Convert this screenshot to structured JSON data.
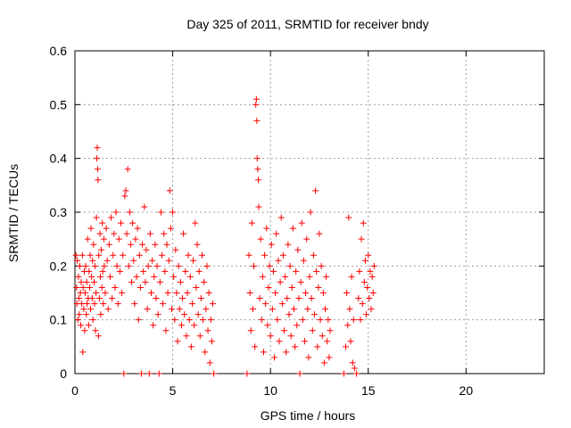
{
  "chart_data": {
    "type": "scatter",
    "title": "Day 325 of 2011, SRMTID for receiver bndy",
    "xlabel": "GPS time / hours",
    "ylabel": "SRMTID / TECUs",
    "xlim": [
      0,
      24
    ],
    "ylim": [
      0,
      0.6
    ],
    "x_ticks": [
      0,
      5,
      10,
      15,
      20
    ],
    "y_ticks": [
      0,
      0.1,
      0.2,
      0.3,
      0.4,
      0.5,
      0.6
    ],
    "grid": true,
    "legend": "none",
    "marker": "plus",
    "color": "#ff0000",
    "series": [
      {
        "values": [
          [
            0.05,
            0.22
          ],
          [
            0.08,
            0.16
          ],
          [
            0.1,
            0.13
          ],
          [
            0.12,
            0.21
          ],
          [
            0.15,
            0.1
          ],
          [
            0.18,
            0.18
          ],
          [
            0.2,
            0.14
          ],
          [
            0.22,
            0.11
          ],
          [
            0.25,
            0.2
          ],
          [
            0.28,
            0.15
          ],
          [
            0.3,
            0.09
          ],
          [
            0.32,
            0.17
          ],
          [
            0.35,
            0.13
          ],
          [
            0.38,
            0.22
          ],
          [
            0.4,
            0.04
          ],
          [
            0.42,
            0.16
          ],
          [
            0.45,
            0.12
          ],
          [
            0.48,
            0.19
          ],
          [
            0.5,
            0.08
          ],
          [
            0.52,
            0.15
          ],
          [
            0.55,
            0.2
          ],
          [
            0.58,
            0.11
          ],
          [
            0.6,
            0.17
          ],
          [
            0.62,
            0.13
          ],
          [
            0.65,
            0.25
          ],
          [
            0.68,
            0.14
          ],
          [
            0.7,
            0.09
          ],
          [
            0.72,
            0.19
          ],
          [
            0.75,
            0.16
          ],
          [
            0.78,
            0.22
          ],
          [
            0.8,
            0.12
          ],
          [
            0.82,
            0.27
          ],
          [
            0.85,
            0.18
          ],
          [
            0.88,
            0.14
          ],
          [
            0.9,
            0.21
          ],
          [
            0.92,
            0.1
          ],
          [
            0.95,
            0.24
          ],
          [
            0.98,
            0.17
          ],
          [
            1.0,
            0.13
          ],
          [
            1.02,
            0.2
          ],
          [
            1.05,
            0.08
          ],
          [
            1.08,
            0.15
          ],
          [
            1.1,
            0.29
          ],
          [
            1.12,
            0.4
          ],
          [
            1.14,
            0.42
          ],
          [
            1.16,
            0.38
          ],
          [
            1.18,
            0.36
          ],
          [
            1.2,
            0.07
          ],
          [
            1.22,
            0.22
          ],
          [
            1.25,
            0.14
          ],
          [
            1.28,
            0.26
          ],
          [
            1.3,
            0.18
          ],
          [
            1.32,
            0.11
          ],
          [
            1.35,
            0.23
          ],
          [
            1.38,
            0.16
          ],
          [
            1.4,
            0.28
          ],
          [
            1.42,
            0.19
          ],
          [
            1.45,
            0.13
          ],
          [
            1.48,
            0.25
          ],
          [
            1.5,
            0.2
          ],
          [
            1.55,
            0.15
          ],
          [
            1.6,
            0.27
          ],
          [
            1.65,
            0.21
          ],
          [
            1.7,
            0.12
          ],
          [
            1.75,
            0.24
          ],
          [
            1.8,
            0.18
          ],
          [
            1.85,
            0.29
          ],
          [
            1.9,
            0.14
          ],
          [
            1.95,
            0.22
          ],
          [
            2.0,
            0.26
          ],
          [
            2.05,
            0.16
          ],
          [
            2.1,
            0.3
          ],
          [
            2.15,
            0.2
          ],
          [
            2.2,
            0.13
          ],
          [
            2.25,
            0.25
          ],
          [
            2.3,
            0.19
          ],
          [
            2.35,
            0.28
          ],
          [
            2.4,
            0.15
          ],
          [
            2.45,
            0.22
          ],
          [
            2.5,
            0.0
          ],
          [
            2.55,
            0.33
          ],
          [
            2.6,
            0.34
          ],
          [
            2.65,
            0.26
          ],
          [
            2.7,
            0.38
          ],
          [
            2.75,
            0.2
          ],
          [
            2.8,
            0.3
          ],
          [
            2.85,
            0.24
          ],
          [
            2.9,
            0.17
          ],
          [
            2.95,
            0.28
          ],
          [
            3.0,
            0.21
          ],
          [
            3.05,
            0.13
          ],
          [
            3.1,
            0.25
          ],
          [
            3.15,
            0.18
          ],
          [
            3.2,
            0.27
          ],
          [
            3.25,
            0.1
          ],
          [
            3.3,
            0.22
          ],
          [
            3.35,
            0.16
          ],
          [
            3.4,
            0.0
          ],
          [
            3.45,
            0.24
          ],
          [
            3.5,
            0.19
          ],
          [
            3.55,
            0.31
          ],
          [
            3.6,
            0.17
          ],
          [
            3.65,
            0.23
          ],
          [
            3.7,
            0.12
          ],
          [
            3.75,
            0.2
          ],
          [
            3.8,
            0.0
          ],
          [
            3.85,
            0.26
          ],
          [
            3.9,
            0.15
          ],
          [
            3.95,
            0.21
          ],
          [
            4.0,
            0.09
          ],
          [
            4.05,
            0.18
          ],
          [
            4.1,
            0.24
          ],
          [
            4.15,
            0.14
          ],
          [
            4.2,
            0.2
          ],
          [
            4.25,
            0.11
          ],
          [
            4.3,
            0.0
          ],
          [
            4.35,
            0.17
          ],
          [
            4.4,
            0.3
          ],
          [
            4.45,
            0.22
          ],
          [
            4.5,
            0.13
          ],
          [
            4.55,
            0.26
          ],
          [
            4.6,
            0.19
          ],
          [
            4.65,
            0.08
          ],
          [
            4.7,
            0.24
          ],
          [
            4.75,
            0.15
          ],
          [
            4.8,
            0.21
          ],
          [
            4.85,
            0.34
          ],
          [
            4.9,
            0.27
          ],
          [
            4.95,
            0.12
          ],
          [
            5.0,
            0.3
          ],
          [
            5.05,
            0.18
          ],
          [
            5.1,
            0.1
          ],
          [
            5.15,
            0.23
          ],
          [
            5.2,
            0.15
          ],
          [
            5.25,
            0.06
          ],
          [
            5.3,
            0.2
          ],
          [
            5.35,
            0.12
          ],
          [
            5.4,
            0.17
          ],
          [
            5.45,
            0.09
          ],
          [
            5.5,
            0.14
          ],
          [
            5.55,
            0.26
          ],
          [
            5.6,
            0.11
          ],
          [
            5.65,
            0.19
          ],
          [
            5.7,
            0.07
          ],
          [
            5.75,
            0.15
          ],
          [
            5.8,
            0.22
          ],
          [
            5.85,
            0.1
          ],
          [
            5.9,
            0.18
          ],
          [
            5.95,
            0.05
          ],
          [
            6.0,
            0.13
          ],
          [
            6.05,
            0.21
          ],
          [
            6.1,
            0.09
          ],
          [
            6.15,
            0.28
          ],
          [
            6.2,
            0.16
          ],
          [
            6.25,
            0.24
          ],
          [
            6.3,
            0.11
          ],
          [
            6.35,
            0.19
          ],
          [
            6.4,
            0.07
          ],
          [
            6.45,
            0.14
          ],
          [
            6.5,
            0.22
          ],
          [
            6.55,
            0.1
          ],
          [
            6.6,
            0.17
          ],
          [
            6.65,
            0.04
          ],
          [
            6.7,
            0.12
          ],
          [
            6.75,
            0.2
          ],
          [
            6.8,
            0.08
          ],
          [
            6.85,
            0.15
          ],
          [
            6.9,
            0.02
          ],
          [
            6.95,
            0.1
          ],
          [
            7.0,
            0.06
          ],
          [
            7.05,
            0.13
          ],
          [
            7.1,
            0.0
          ],
          [
            8.8,
            0.0
          ],
          [
            8.9,
            0.22
          ],
          [
            8.95,
            0.15
          ],
          [
            9.0,
            0.08
          ],
          [
            9.05,
            0.28
          ],
          [
            9.1,
            0.12
          ],
          [
            9.15,
            0.2
          ],
          [
            9.2,
            0.05
          ],
          [
            9.25,
            0.5
          ],
          [
            9.28,
            0.51
          ],
          [
            9.3,
            0.47
          ],
          [
            9.32,
            0.4
          ],
          [
            9.35,
            0.38
          ],
          [
            9.38,
            0.36
          ],
          [
            9.4,
            0.31
          ],
          [
            9.45,
            0.14
          ],
          [
            9.5,
            0.25
          ],
          [
            9.55,
            0.1
          ],
          [
            9.6,
            0.18
          ],
          [
            9.65,
            0.04
          ],
          [
            9.7,
            0.22
          ],
          [
            9.75,
            0.13
          ],
          [
            9.8,
            0.27
          ],
          [
            9.85,
            0.09
          ],
          [
            9.9,
            0.16
          ],
          [
            9.95,
            0.2
          ],
          [
            10.0,
            0.07
          ],
          [
            10.05,
            0.24
          ],
          [
            10.1,
            0.12
          ],
          [
            10.15,
            0.19
          ],
          [
            10.2,
            0.03
          ],
          [
            10.25,
            0.15
          ],
          [
            10.3,
            0.26
          ],
          [
            10.35,
            0.1
          ],
          [
            10.4,
            0.21
          ],
          [
            10.45,
            0.06
          ],
          [
            10.5,
            0.17
          ],
          [
            10.55,
            0.29
          ],
          [
            10.6,
            0.13
          ],
          [
            10.65,
            0.22
          ],
          [
            10.7,
            0.08
          ],
          [
            10.75,
            0.18
          ],
          [
            10.8,
            0.04
          ],
          [
            10.85,
            0.14
          ],
          [
            10.9,
            0.24
          ],
          [
            10.95,
            0.11
          ],
          [
            11.0,
            0.2
          ],
          [
            11.05,
            0.07
          ],
          [
            11.1,
            0.16
          ],
          [
            11.15,
            0.27
          ],
          [
            11.2,
            0.12
          ],
          [
            11.25,
            0.05
          ],
          [
            11.3,
            0.19
          ],
          [
            11.35,
            0.09
          ],
          [
            11.4,
            0.23
          ],
          [
            11.45,
            0.14
          ],
          [
            11.5,
            0.0
          ],
          [
            11.55,
            0.17
          ],
          [
            11.6,
            0.28
          ],
          [
            11.65,
            0.1
          ],
          [
            11.7,
            0.21
          ],
          [
            11.75,
            0.06
          ],
          [
            11.8,
            0.15
          ],
          [
            11.85,
            0.25
          ],
          [
            11.9,
            0.12
          ],
          [
            11.95,
            0.03
          ],
          [
            12.0,
            0.18
          ],
          [
            12.05,
            0.3
          ],
          [
            12.1,
            0.14
          ],
          [
            12.15,
            0.08
          ],
          [
            12.2,
            0.22
          ],
          [
            12.25,
            0.11
          ],
          [
            12.3,
            0.34
          ],
          [
            12.35,
            0.19
          ],
          [
            12.4,
            0.05
          ],
          [
            12.45,
            0.16
          ],
          [
            12.5,
            0.26
          ],
          [
            12.55,
            0.1
          ],
          [
            12.6,
            0.2
          ],
          [
            12.65,
            0.07
          ],
          [
            12.7,
            0.15
          ],
          [
            12.75,
            0.02
          ],
          [
            12.8,
            0.12
          ],
          [
            12.85,
            0.18
          ],
          [
            12.9,
            0.06
          ],
          [
            12.95,
            0.1
          ],
          [
            13.0,
            0.03
          ],
          [
            13.05,
            0.08
          ],
          [
            13.75,
            0.0
          ],
          [
            13.85,
            0.05
          ],
          [
            13.9,
            0.15
          ],
          [
            13.95,
            0.09
          ],
          [
            14.0,
            0.29
          ],
          [
            14.05,
            0.12
          ],
          [
            14.1,
            0.06
          ],
          [
            14.15,
            0.18
          ],
          [
            14.2,
            0.02
          ],
          [
            14.25,
            0.1
          ],
          [
            14.3,
            0.01
          ],
          [
            14.4,
            0.0
          ],
          [
            14.5,
            0.14
          ],
          [
            14.55,
            0.19
          ],
          [
            14.6,
            0.1
          ],
          [
            14.65,
            0.25
          ],
          [
            14.7,
            0.13
          ],
          [
            14.75,
            0.28
          ],
          [
            14.8,
            0.17
          ],
          [
            14.85,
            0.21
          ],
          [
            14.9,
            0.11
          ],
          [
            14.95,
            0.16
          ],
          [
            15.0,
            0.22
          ],
          [
            15.05,
            0.14
          ],
          [
            15.1,
            0.19
          ],
          [
            15.15,
            0.12
          ],
          [
            15.2,
            0.18
          ],
          [
            15.25,
            0.15
          ],
          [
            15.3,
            0.2
          ]
        ]
      }
    ]
  }
}
